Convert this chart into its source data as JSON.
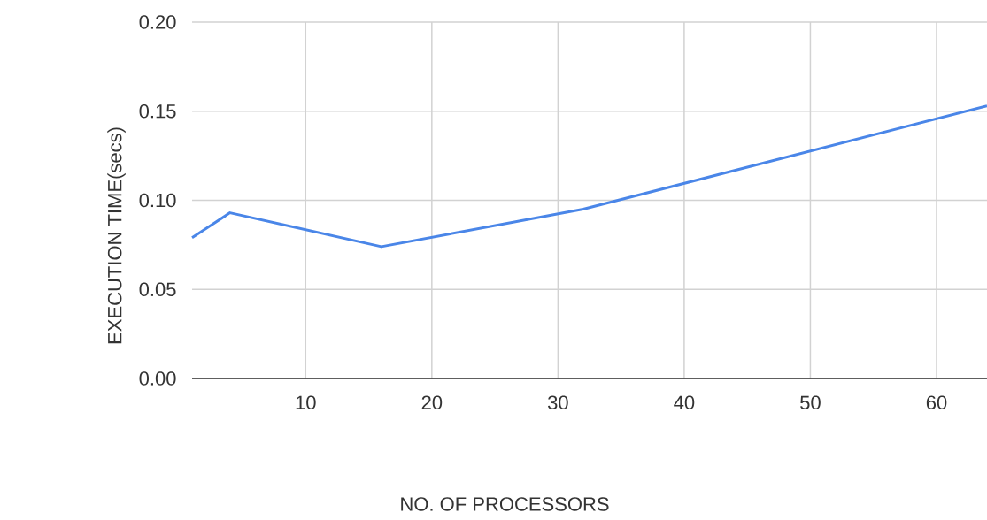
{
  "chart_data": {
    "type": "line",
    "xlabel": "NO. OF PROCESSORS",
    "ylabel": "EXECUTION TIME(secs)",
    "x": [
      1,
      4,
      16,
      32,
      64
    ],
    "series": [
      {
        "color": "#4a86e8",
        "values": [
          0.079,
          0.093,
          0.074,
          0.095,
          0.153
        ]
      }
    ],
    "xlim": [
      1,
      64
    ],
    "xticks": [
      10,
      20,
      30,
      40,
      50,
      60
    ],
    "ylim": [
      0,
      0.2
    ],
    "yticks": [
      {
        "value": 0,
        "label": "0.00"
      },
      {
        "value": 0.05,
        "label": "0.05"
      },
      {
        "value": 0.1,
        "label": "0.10"
      },
      {
        "value": 0.15,
        "label": "0.15"
      },
      {
        "value": 0.2,
        "label": "0.20"
      }
    ],
    "grid": true,
    "legend": false,
    "marker": "none",
    "line_style": "solid"
  }
}
